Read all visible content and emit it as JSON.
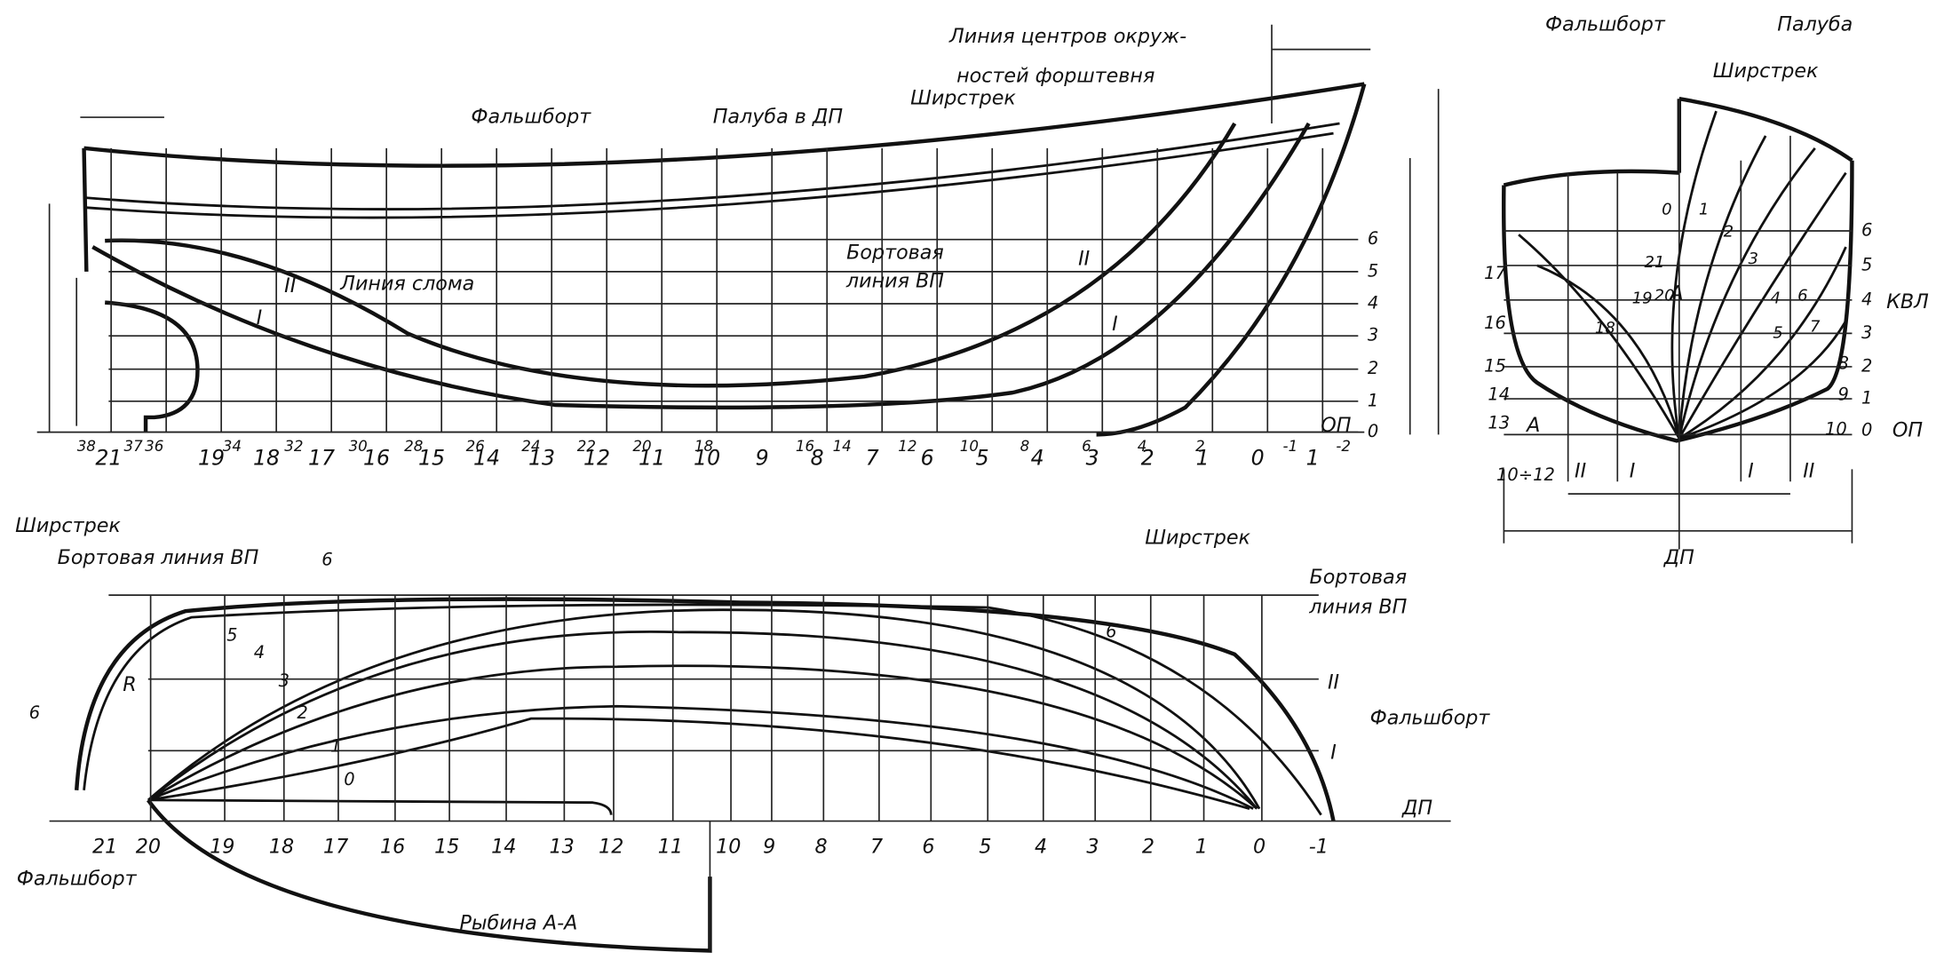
{
  "profile": {
    "labels": [
      "Фальшборт",
      "Палуба в ДП",
      "Ширстрек",
      "Линия центров окруж-",
      "ностей форштевня",
      "Бортовая",
      "линия ВП",
      "Линия слома",
      "ОП"
    ],
    "stations": [
      "21",
      "19",
      "18",
      "17",
      "16",
      "15",
      "14",
      "13",
      "12",
      "11",
      "10",
      "9",
      "8",
      "7",
      "6",
      "5",
      "4",
      "3",
      "2",
      "1",
      "0",
      "1"
    ],
    "half_stations": [
      "38",
      "37",
      "36",
      "34",
      "32",
      "30",
      "28",
      "26",
      "24",
      "22",
      "20",
      "18",
      "16",
      "14",
      "12",
      "10",
      "8",
      "6",
      "4",
      "2",
      "-1",
      "-2"
    ],
    "waterlines": [
      "0",
      "1",
      "2",
      "3",
      "4",
      "5",
      "6"
    ],
    "buttocks": [
      "II",
      "I",
      "II",
      "I"
    ]
  },
  "section": {
    "labels": [
      "Фальшборт",
      "Палуба",
      "Ширстрек",
      "КВЛ",
      "ОП",
      "ДП",
      "А",
      "А"
    ],
    "left_numbers": [
      "17",
      "16",
      "15",
      "14",
      "13",
      "10÷12"
    ],
    "right_numbers": [
      "6",
      "5",
      "4",
      "3",
      "2",
      "1",
      "0",
      "8",
      "9",
      "10"
    ],
    "inner_numbers": [
      "21",
      "20",
      "19",
      "18",
      "0",
      "1",
      "2",
      "3",
      "4",
      "5",
      "6",
      "7"
    ],
    "buttocks": [
      "II",
      "I",
      "I",
      "II"
    ]
  },
  "plan": {
    "labels": [
      "Ширстрек",
      "Бортовая линия ВП",
      "Ширстрек",
      "Бортовая",
      "линия ВП",
      "Фальшборт",
      "Фальшборт",
      "Рыбина А-А",
      "ДП",
      "R"
    ],
    "stations": [
      "21",
      "20",
      "19",
      "18",
      "17",
      "16",
      "15",
      "14",
      "13",
      "12",
      "11",
      "10",
      "9",
      "8",
      "7",
      "6",
      "5",
      "4",
      "3",
      "2",
      "1",
      "0",
      "-1"
    ],
    "waterlines": [
      "0",
      "1",
      "2",
      "3",
      "4",
      "5",
      "6",
      "6",
      "6"
    ],
    "buttocks": [
      "II",
      "I"
    ]
  }
}
